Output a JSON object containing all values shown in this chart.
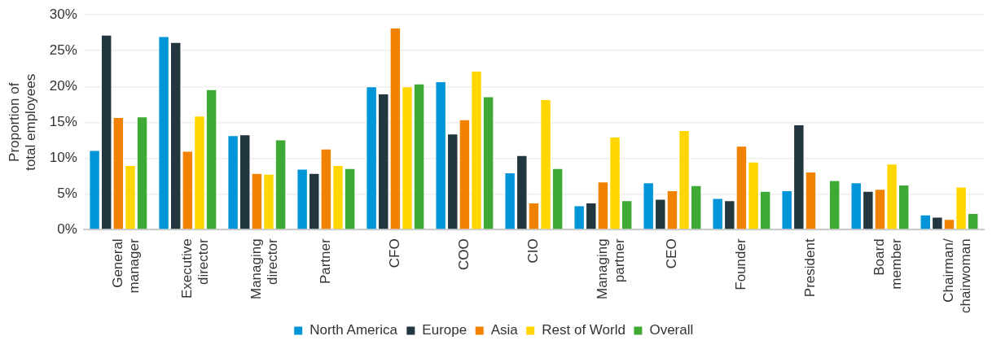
{
  "chart_data": {
    "type": "bar",
    "ylabel": "Proportion of total employees",
    "categories": [
      "General manager",
      "Executive director",
      "Managing director",
      "Partner",
      "CFO",
      "COO",
      "CIO",
      "Managing partner",
      "CEO",
      "Founder",
      "President",
      "Board member",
      "Chairman/ chairwoman"
    ],
    "series": [
      {
        "name": "North America",
        "color": "#0095d9",
        "values": [
          11.1,
          27.0,
          13.2,
          8.5,
          20.0,
          20.7,
          8.0,
          3.4,
          6.6,
          4.4,
          5.5,
          6.6,
          2.1
        ]
      },
      {
        "name": "Europe",
        "color": "#22363f",
        "values": [
          27.2,
          26.2,
          13.3,
          7.9,
          19.0,
          13.4,
          10.4,
          3.8,
          4.3,
          4.1,
          14.7,
          5.4,
          1.8
        ]
      },
      {
        "name": "Asia",
        "color": "#f08200",
        "values": [
          15.7,
          11.0,
          7.9,
          11.3,
          28.2,
          15.4,
          3.8,
          6.7,
          5.5,
          11.7,
          8.1,
          5.7,
          1.5
        ]
      },
      {
        "name": "Rest of World",
        "color": "#ffd600",
        "values": [
          9.0,
          15.9,
          7.8,
          9.0,
          20.0,
          22.2,
          18.2,
          13.0,
          13.9,
          9.5,
          null,
          9.2,
          6.0
        ]
      },
      {
        "name": "Overall",
        "color": "#3ea935",
        "values": [
          15.8,
          19.6,
          12.6,
          8.6,
          20.4,
          18.6,
          8.6,
          4.1,
          6.2,
          5.4,
          6.9,
          6.3,
          2.3
        ]
      }
    ],
    "ylim": [
      0,
      30
    ],
    "yticks": [
      {
        "value": 0,
        "label": "0%"
      },
      {
        "value": 5,
        "label": "5%"
      },
      {
        "value": 10,
        "label": "10%"
      },
      {
        "value": 15,
        "label": "15%"
      },
      {
        "value": 20,
        "label": "20%"
      },
      {
        "value": 25,
        "label": "25%"
      },
      {
        "value": 30,
        "label": "30%"
      }
    ],
    "grid": "y",
    "legend": "bottom"
  }
}
